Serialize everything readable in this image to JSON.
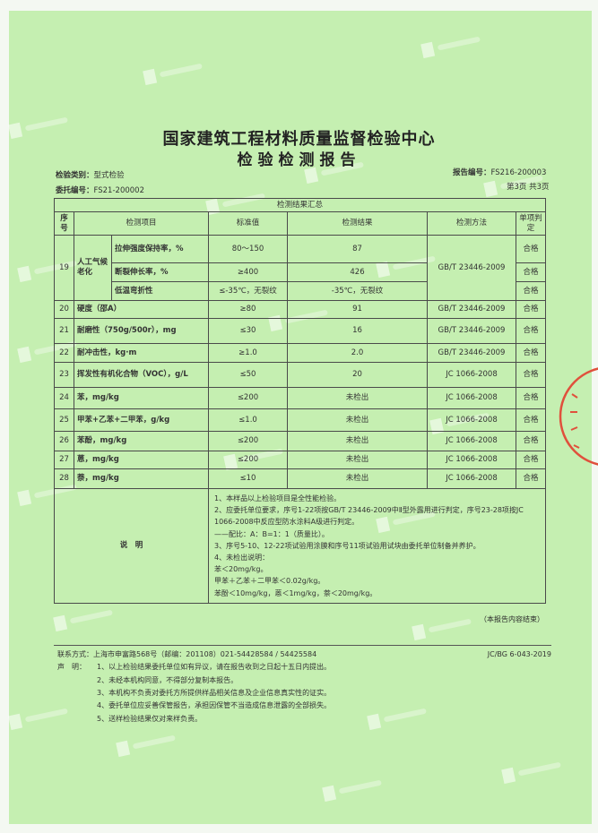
{
  "watermark": "上海建科",
  "header": {
    "org_title": "国家建筑工程材料质量监督检验中心",
    "report_title": "检验检测报告",
    "category_label": "检验类别：",
    "category_value": "型式检验",
    "entrust_label": "委托编号：",
    "entrust_value": "FS21-200002",
    "report_no_label": "报告编号：",
    "report_no_value": "FS216-200003",
    "page_info": "第3页 共3页"
  },
  "table": {
    "caption": "检测结果汇总",
    "columns": [
      "序号",
      "检测项目",
      "标准值",
      "检测结果",
      "检测方法",
      "单项判定"
    ],
    "group19": {
      "no": "19",
      "name": "人工气候老化",
      "sub": [
        {
          "item": "拉伸强度保持率，%",
          "std": "80～150",
          "result": "87",
          "verdict": "合格"
        },
        {
          "item": "断裂伸长率，%",
          "std": "≥400",
          "result": "426",
          "verdict": "合格"
        },
        {
          "item": "低温弯折性",
          "std": "≤-35℃，无裂纹",
          "result": "-35℃，无裂纹",
          "verdict": "合格"
        }
      ],
      "method": "GB/T 23446-2009"
    },
    "rows": [
      {
        "no": "20",
        "item": "硬度（邵A）",
        "std": "≥80",
        "result": "91",
        "method": "GB/T 23446-2009",
        "verdict": "合格"
      },
      {
        "no": "21",
        "item": "耐磨性（750g/500r），mg",
        "std": "≤30",
        "result": "16",
        "method": "GB/T 23446-2009",
        "verdict": "合格"
      },
      {
        "no": "22",
        "item": "耐冲击性，kg·m",
        "std": "≥1.0",
        "result": "2.0",
        "method": "GB/T 23446-2009",
        "verdict": "合格"
      },
      {
        "no": "23",
        "item": "挥发性有机化合物（VOC），g/L",
        "std": "≤50",
        "result": "20",
        "method": "JC 1066-2008",
        "verdict": "合格"
      },
      {
        "no": "24",
        "item": "苯，mg/kg",
        "std": "≤200",
        "result": "未检出",
        "method": "JC 1066-2008",
        "verdict": "合格"
      },
      {
        "no": "25",
        "item": "甲苯+乙苯+二甲苯，g/kg",
        "std": "≤1.0",
        "result": "未检出",
        "method": "JC 1066-2008",
        "verdict": "合格"
      },
      {
        "no": "26",
        "item": "苯酚，mg/kg",
        "std": "≤200",
        "result": "未检出",
        "method": "JC 1066-2008",
        "verdict": "合格"
      },
      {
        "no": "27",
        "item": "蒽，mg/kg",
        "std": "≤200",
        "result": "未检出",
        "method": "JC 1066-2008",
        "verdict": "合格"
      },
      {
        "no": "28",
        "item": "萘，mg/kg",
        "std": "≤10",
        "result": "未检出",
        "method": "JC 1066-2008",
        "verdict": "合格"
      }
    ],
    "notes_label": "说　明",
    "notes": [
      "1、本样品以上检验项目是全性能检验。",
      "2、应委托单位要求，序号1-22项按GB/T 23446-2009中Ⅱ型外露用进行判定，序号23-28项按JC 1066-2008中反应型防水涂料A级进行判定。",
      "——配比：A：B=1：1（质量比）。",
      "3、序号5-10、12-22项试验用涂膜和序号11项试验用试块由委托单位制备并养护。",
      "4、未检出说明：",
      "苯＜20mg/kg。",
      "甲苯＋乙苯＋二甲苯＜0.02g/kg。",
      "苯酚＜10mg/kg，蒽＜1mg/kg，萘＜20mg/kg。"
    ]
  },
  "end_note": "（本报告内容结束）",
  "footer": {
    "contact": "联系方式：上海市申富路568号（邮编：201108）021-54428584 / 54425584",
    "form_code": "JC/BG 6-043-2019",
    "statement_label": "声　明：",
    "statements": [
      "1、以上检验结果委托单位如有异议，请在报告收到之日起十五日内提出。",
      "2、未经本机构同意，不得部分复制本报告。",
      "3、本机构不负责对委托方所提供样品相关信息及企业信息真实性的证实。",
      "4、委托单位应妥善保管报告，承担因保管不当造成信息泄露的全部损失。",
      "5、送样检验结果仅对来样负责。"
    ]
  },
  "stamp_color": "#e0503c"
}
